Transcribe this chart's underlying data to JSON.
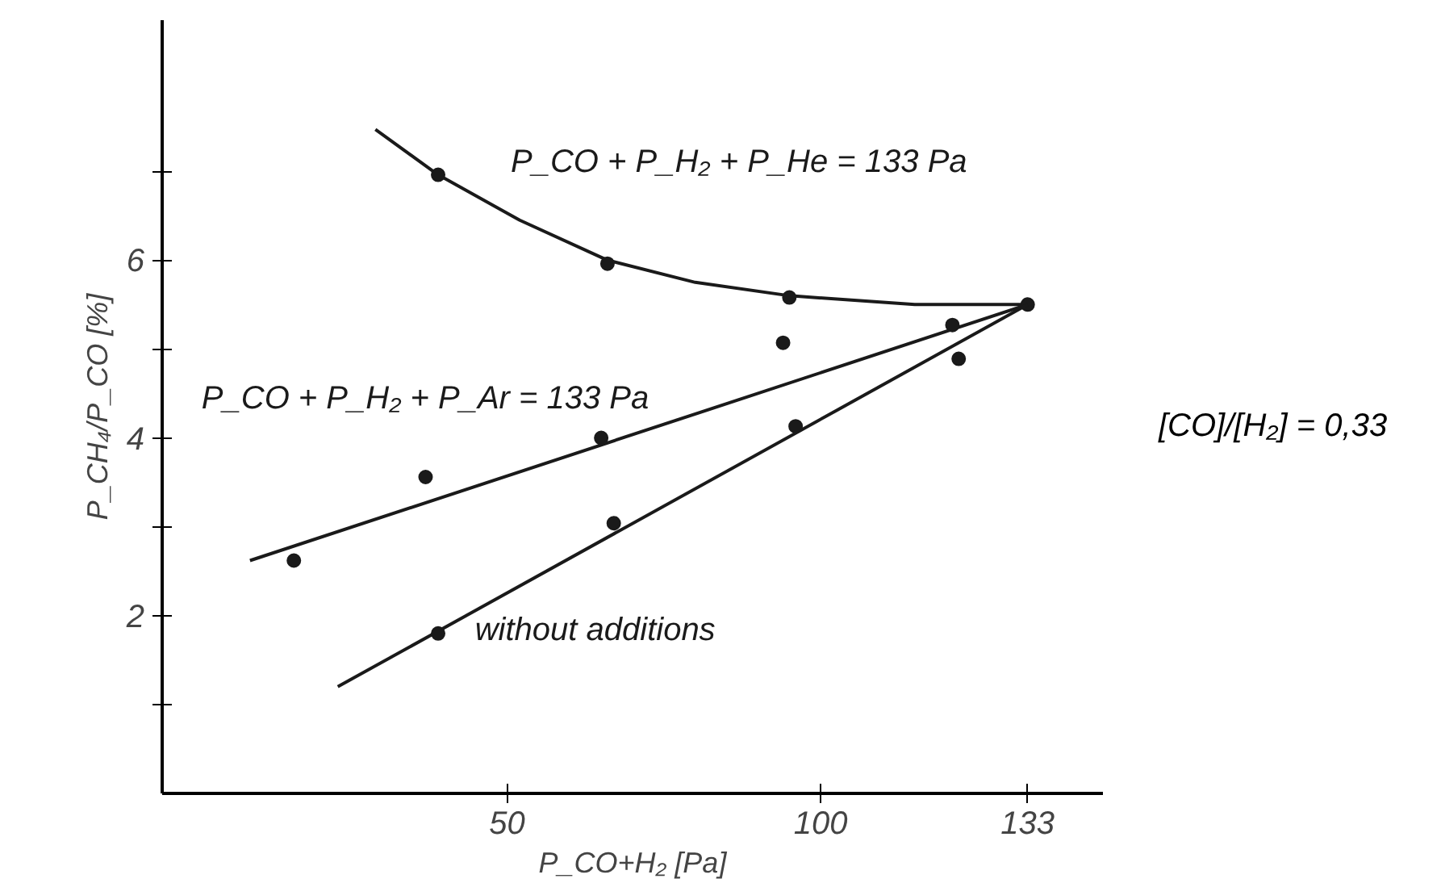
{
  "chart_data": {
    "type": "scatter",
    "xlabel": "P_CO+H₂ [Pa]",
    "ylabel": "P_CH₄/P_CO [%]",
    "xlim": [
      -5,
      145
    ],
    "ylim": [
      0,
      8.7
    ],
    "xticks": [
      50,
      100,
      133
    ],
    "yticks": [
      {
        "value": 1,
        "label": null
      },
      2,
      {
        "value": 3,
        "label": null
      },
      4,
      {
        "value": 5,
        "label": null
      },
      6,
      {
        "value": 7,
        "label": null
      }
    ],
    "grid": false,
    "legend": false,
    "annotations": [
      "[CO]/[H₂] = 0,33"
    ],
    "series": [
      {
        "type": "line",
        "name": "P_CO + P_H₂ + P_He = 133 Pa",
        "color": "#1a1a1a",
        "marker": "none",
        "x": [
          29,
          39,
          52,
          66,
          80,
          95,
          115,
          133
        ],
        "values": [
          7.47,
          6.96,
          6.45,
          6.0,
          5.75,
          5.6,
          5.5,
          5.5
        ]
      },
      {
        "color": "#1a1a1a",
        "marker": "circle",
        "x": [
          39,
          66,
          95,
          133
        ],
        "values": [
          6.96,
          5.96,
          5.58,
          5.5
        ]
      },
      {
        "type": "line",
        "name": "P_CO + P_H₂ + P_Ar = 133 Pa",
        "color": "#1a1a1a",
        "marker": "none",
        "x": [
          9,
          133
        ],
        "values": [
          2.62,
          5.5
        ]
      },
      {
        "color": "#1a1a1a",
        "marker": "circle",
        "x": [
          16,
          37,
          65,
          94,
          121
        ],
        "values": [
          2.62,
          3.56,
          4.0,
          5.07,
          5.27
        ]
      },
      {
        "type": "line",
        "name": "without additions",
        "color": "#1a1a1a",
        "marker": "none",
        "x": [
          23,
          133
        ],
        "values": [
          1.2,
          5.5
        ]
      },
      {
        "color": "#1a1a1a",
        "marker": "circle",
        "x": [
          39,
          67,
          96,
          122
        ],
        "values": [
          1.8,
          3.04,
          4.13,
          4.89
        ]
      }
    ]
  }
}
